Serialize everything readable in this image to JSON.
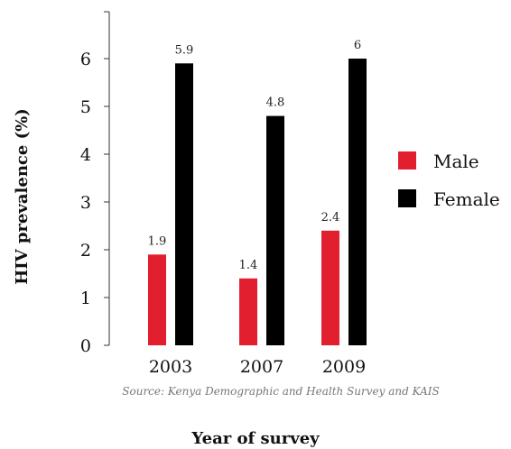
{
  "chart_data": {
    "type": "bar",
    "categories": [
      "2003",
      "2007",
      "2009"
    ],
    "series": [
      {
        "name": "Male",
        "values": [
          1.9,
          1.4,
          2.4
        ],
        "labels": [
          "1.9",
          "1.4",
          "2.4"
        ]
      },
      {
        "name": "Female",
        "values": [
          5.9,
          4.8,
          6
        ],
        "labels": [
          "5.9",
          "4.8",
          "6"
        ]
      }
    ],
    "ylabel": "HIV prevalence (%)",
    "xlabel": "Year of survey",
    "source": "Source: Kenya Demographic and Health Survey and KAIS",
    "yticks": [
      "0",
      "1",
      "2",
      "3",
      "4",
      "5",
      "6"
    ],
    "ylim": [
      0,
      6.6
    ],
    "grid": false,
    "legend_position": "right",
    "colors": {
      "Male": "#e21f2f",
      "Female": "#000000"
    }
  }
}
